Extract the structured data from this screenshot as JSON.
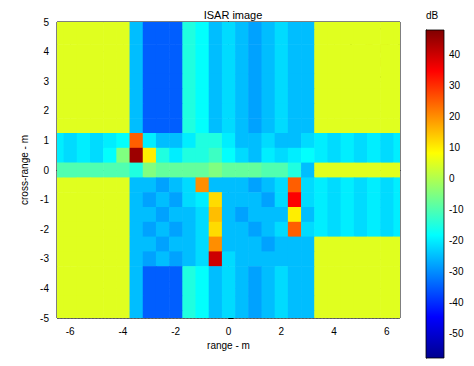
{
  "chart_data": {
    "type": "heatmap",
    "title": "ISAR image",
    "x_label": "range - m",
    "y_label": "cross-range - m",
    "xlim": [
      -6.5,
      6.5
    ],
    "xticks": [
      -6,
      -4,
      -2,
      0,
      2,
      4,
      6
    ],
    "ylim": [
      -5,
      5
    ],
    "yticks": [
      -5,
      -4,
      -3,
      -2,
      -1,
      0,
      1,
      2,
      3,
      4,
      5
    ],
    "grid": true,
    "x": [
      -6.5,
      -6,
      -5.5,
      -5,
      -4.5,
      -4,
      -3.5,
      -3,
      -2.5,
      -2,
      -1.5,
      -1,
      -0.5,
      0,
      0.5,
      1,
      1.5,
      2,
      2.5,
      3,
      3.5,
      4,
      4.5,
      5,
      5.5,
      6,
      6.5
    ],
    "y": [
      5,
      4.5,
      4,
      3.5,
      3,
      2.5,
      2,
      1.5,
      1,
      0.5,
      0,
      -0.5,
      -1,
      -1.5,
      -2,
      -2.5,
      -3,
      -3.5,
      -4,
      -4.5,
      -5
    ],
    "cells": [
      [
        5,
        5,
        5,
        5,
        5,
        5,
        -25,
        -35,
        -35,
        -35,
        -15,
        -18,
        -25,
        -22,
        -25,
        -28,
        -25,
        -22,
        -25,
        -25,
        5,
        5,
        5,
        5,
        5,
        5,
        5
      ],
      [
        5,
        5,
        5,
        5,
        5,
        5,
        -25,
        -35,
        -35,
        -35,
        -15,
        -18,
        -25,
        -22,
        -25,
        -28,
        -25,
        -22,
        -25,
        -25,
        5,
        5,
        5,
        5,
        5,
        5,
        5
      ],
      [
        5,
        5,
        5,
        5,
        5,
        5,
        -25,
        -35,
        -35,
        -35,
        -15,
        -18,
        -25,
        -22,
        -25,
        -28,
        -25,
        -22,
        -25,
        -25,
        5,
        5,
        5,
        5,
        5,
        5,
        5
      ],
      [
        5,
        5,
        5,
        5,
        5,
        5,
        -25,
        -35,
        -35,
        -35,
        -15,
        -18,
        -25,
        -22,
        -25,
        -28,
        -25,
        -22,
        -25,
        -25,
        5,
        5,
        5,
        5,
        5,
        5,
        5
      ],
      [
        5,
        5,
        5,
        5,
        5,
        5,
        -25,
        -35,
        -35,
        -35,
        -15,
        -18,
        -25,
        -22,
        -25,
        -28,
        -25,
        -22,
        -25,
        -25,
        5,
        5,
        5,
        5,
        5,
        5,
        5
      ],
      [
        5,
        5,
        5,
        5,
        5,
        5,
        -25,
        -35,
        -35,
        -35,
        -15,
        -18,
        -25,
        -22,
        -25,
        -28,
        -25,
        -22,
        -25,
        -25,
        5,
        5,
        5,
        5,
        5,
        5,
        5
      ],
      [
        5,
        5,
        5,
        5,
        5,
        5,
        -25,
        -35,
        -35,
        -35,
        -15,
        -18,
        -25,
        -22,
        -25,
        -28,
        -25,
        -22,
        -25,
        -25,
        5,
        5,
        5,
        5,
        5,
        5,
        5
      ],
      [
        5,
        5,
        5,
        5,
        5,
        5,
        -25,
        -35,
        -35,
        -35,
        -15,
        -18,
        -25,
        -22,
        -25,
        -28,
        -25,
        -22,
        -25,
        -25,
        5,
        5,
        5,
        5,
        5,
        5,
        5
      ],
      [
        -20,
        -22,
        -20,
        -22,
        -20,
        -18,
        25,
        -20,
        -25,
        -25,
        -20,
        -15,
        -15,
        -20,
        -25,
        -25,
        -22,
        -25,
        -25,
        -22,
        -20,
        -22,
        -20,
        -22,
        -20,
        -22,
        -20
      ],
      [
        -20,
        -22,
        -20,
        -22,
        -18,
        -5,
        45,
        10,
        -15,
        -20,
        -15,
        -15,
        -12,
        -18,
        -22,
        -25,
        -20,
        -22,
        -20,
        -18,
        -20,
        -22,
        -20,
        -22,
        -20,
        -22,
        -20
      ],
      [
        -10,
        -10,
        -10,
        -10,
        -10,
        -10,
        -15,
        -5,
        -8,
        -8,
        -8,
        -8,
        -5,
        -8,
        -8,
        -8,
        -10,
        -10,
        -15,
        -25,
        5,
        5,
        5,
        5,
        5,
        5,
        5
      ],
      [
        5,
        5,
        5,
        5,
        5,
        5,
        -25,
        -25,
        -28,
        -25,
        -22,
        20,
        -25,
        -25,
        -25,
        -28,
        -25,
        -22,
        25,
        -22,
        -20,
        -22,
        -20,
        -22,
        -20,
        -22,
        -20
      ],
      [
        5,
        5,
        5,
        5,
        5,
        5,
        -25,
        -28,
        -25,
        -28,
        -22,
        -20,
        12,
        -25,
        -25,
        -25,
        -28,
        -22,
        35,
        -22,
        -20,
        -22,
        -20,
        -22,
        -20,
        -22,
        -20
      ],
      [
        5,
        5,
        5,
        5,
        5,
        5,
        -25,
        -25,
        -28,
        -25,
        -25,
        -22,
        15,
        -25,
        -28,
        -25,
        -25,
        -25,
        10,
        -25,
        -20,
        -22,
        -20,
        -22,
        -20,
        -22,
        -20
      ],
      [
        5,
        5,
        5,
        5,
        5,
        5,
        -25,
        -28,
        -25,
        -28,
        -25,
        -22,
        12,
        -25,
        -25,
        -28,
        -25,
        -22,
        25,
        -22,
        -20,
        -22,
        -20,
        -22,
        -20,
        -22,
        -20
      ],
      [
        5,
        5,
        5,
        5,
        5,
        5,
        -25,
        -25,
        -28,
        -25,
        -25,
        -22,
        20,
        -25,
        -25,
        -25,
        -28,
        -25,
        -25,
        -25,
        5,
        5,
        5,
        5,
        5,
        5,
        5
      ],
      [
        5,
        5,
        5,
        5,
        5,
        5,
        -25,
        -28,
        -25,
        -28,
        -25,
        -22,
        40,
        -22,
        -25,
        -25,
        -25,
        -25,
        -25,
        -25,
        5,
        5,
        5,
        5,
        5,
        5,
        5
      ],
      [
        5,
        5,
        5,
        5,
        5,
        5,
        -25,
        -35,
        -35,
        -35,
        -15,
        -18,
        -25,
        -22,
        -25,
        -28,
        -25,
        -22,
        -25,
        -25,
        5,
        5,
        5,
        5,
        5,
        5,
        5
      ],
      [
        5,
        5,
        5,
        5,
        5,
        5,
        -25,
        -35,
        -35,
        -35,
        -15,
        -18,
        -25,
        -22,
        -25,
        -28,
        -25,
        -22,
        -25,
        -25,
        5,
        5,
        5,
        5,
        5,
        5,
        5
      ],
      [
        5,
        5,
        5,
        5,
        5,
        5,
        -25,
        -35,
        -35,
        -35,
        -15,
        -18,
        -25,
        -22,
        -25,
        -28,
        -25,
        -22,
        -25,
        -25,
        5,
        5,
        5,
        5,
        5,
        5,
        5
      ],
      [
        5,
        5,
        5,
        5,
        5,
        5,
        -25,
        -35,
        -35,
        -35,
        -15,
        -18,
        -25,
        -22,
        -25,
        -28,
        -25,
        -22,
        -25,
        -25,
        5,
        5,
        5,
        5,
        5,
        5,
        5
      ]
    ],
    "colorbar": {
      "label": "dB",
      "range": [
        -58,
        48
      ],
      "ticks": [
        -50,
        -40,
        -30,
        -20,
        -10,
        0,
        10,
        20,
        30,
        40
      ],
      "colors": [
        "#00008f",
        "#0000ff",
        "#0080ff",
        "#00ffff",
        "#80ff80",
        "#ffff00",
        "#ff8000",
        "#ff0000",
        "#800000"
      ]
    }
  }
}
